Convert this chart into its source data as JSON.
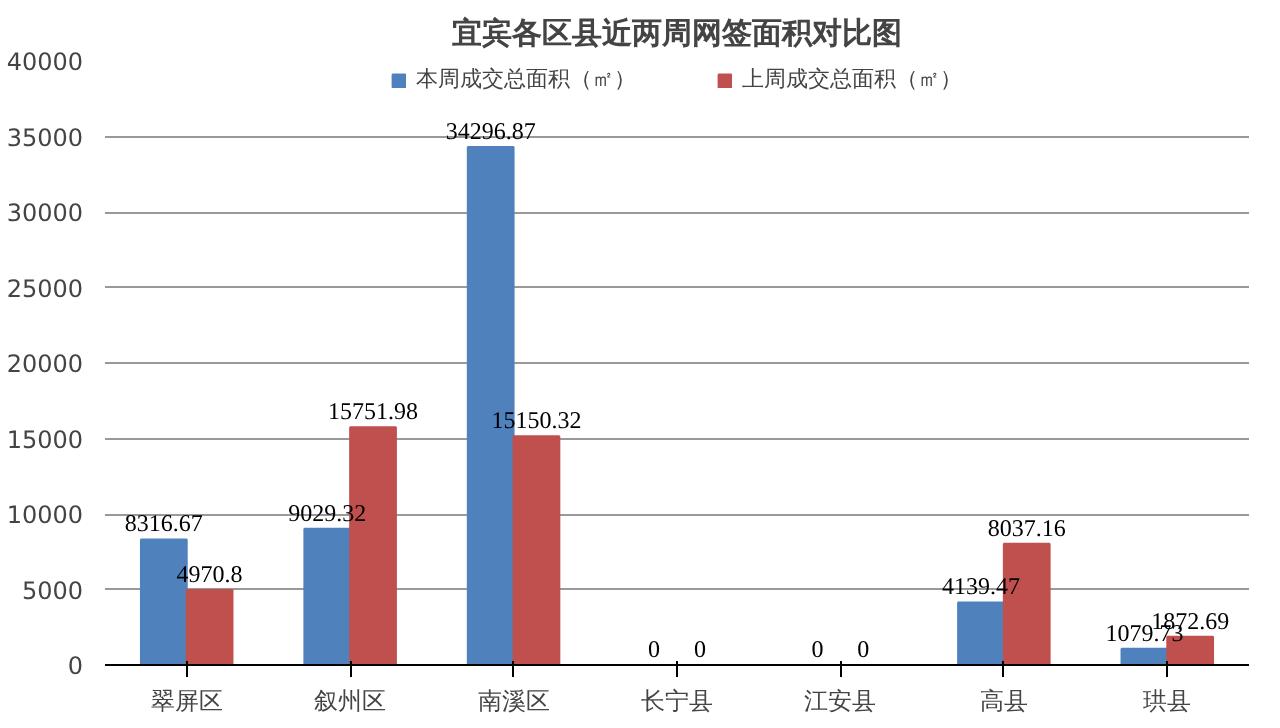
{
  "chart_data": {
    "type": "bar",
    "title": "宜宾各区县近两周网签面积对比图",
    "categories": [
      "翠屏区",
      "叙州区",
      "南溪区",
      "长宁县",
      "江安县",
      "高县",
      "珙县"
    ],
    "series": [
      {
        "name": "本周成交总面积（㎡）",
        "color": "#4f81bd",
        "values": [
          8316.67,
          9029.32,
          34296.87,
          0,
          0,
          4139.47,
          1079.73
        ]
      },
      {
        "name": "上周成交总面积（㎡）",
        "color": "#c0504d",
        "values": [
          4970.8,
          15751.98,
          15150.32,
          0,
          0,
          8037.16,
          1872.69
        ]
      }
    ],
    "ylim": [
      0,
      40000
    ],
    "yticks": [
      0,
      5000,
      10000,
      15000,
      20000,
      25000,
      30000,
      35000,
      40000
    ],
    "grid": "y",
    "legend": "top",
    "data_labels": true
  }
}
